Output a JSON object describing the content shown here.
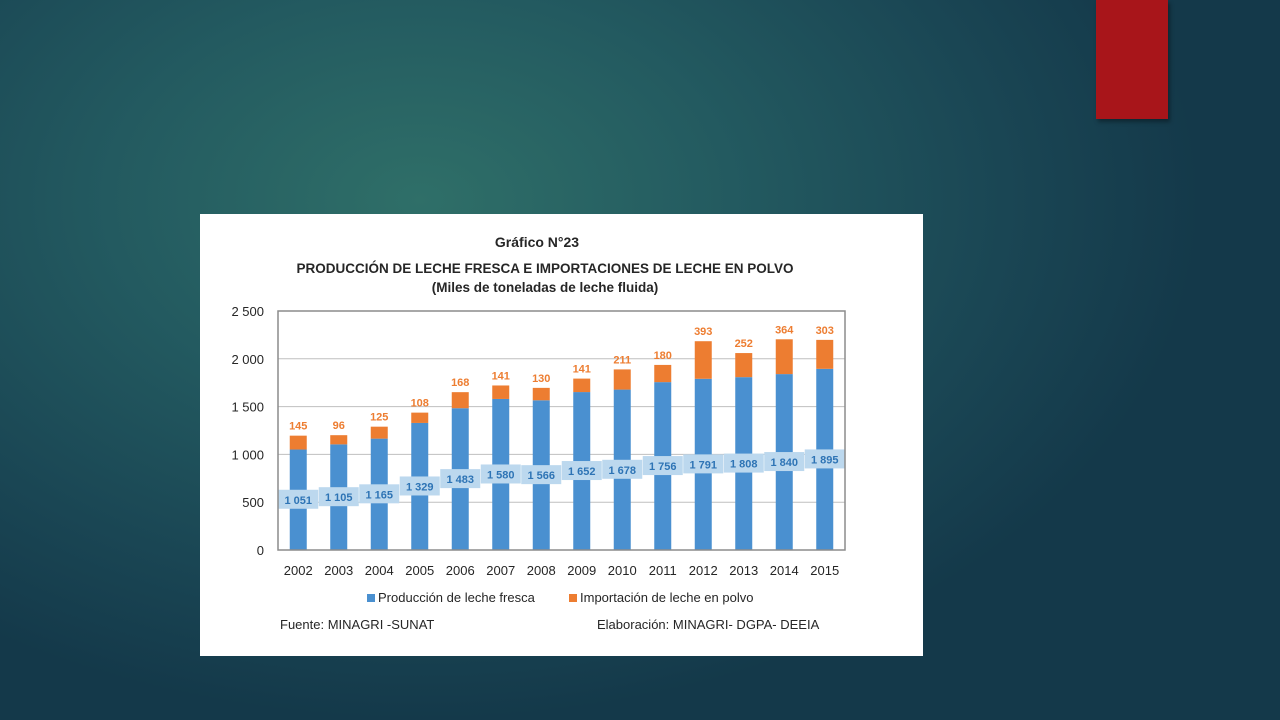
{
  "slide": {
    "accent_color": "#a8151a",
    "background_color": "#1f5158"
  },
  "chart_card": {
    "figure_label": "Gráfico N°23",
    "footer_left": "Fuente: MINAGRI -SUNAT",
    "footer_right": "Elaboración: MINAGRI- DGPA- DEEIA"
  },
  "chart_data": {
    "type": "bar",
    "stacked": true,
    "title": "PRODUCCIÓN DE LECHE FRESCA E IMPORTACIONES DE LECHE EN POLVO",
    "subtitle": "(Miles de toneladas de leche fluida)",
    "xlabel": "",
    "ylabel": "",
    "ylim": [
      0,
      2500
    ],
    "yticks": [
      0,
      500,
      1000,
      1500,
      2000,
      2500
    ],
    "ytick_labels": [
      "0",
      "500",
      "1 000",
      "1 500",
      "2 000",
      "2 500"
    ],
    "grid": true,
    "legend_position": "bottom",
    "categories": [
      "2002",
      "2003",
      "2004",
      "2005",
      "2006",
      "2007",
      "2008",
      "2009",
      "2010",
      "2011",
      "2012",
      "2013",
      "2014",
      "2015"
    ],
    "series": [
      {
        "name": "Producción de leche fresca",
        "color": "#4a90d0",
        "label_bg": "#bcd8ee",
        "label_color": "#2e74b5",
        "values": [
          1051,
          1105,
          1165,
          1329,
          1483,
          1580,
          1566,
          1652,
          1678,
          1756,
          1791,
          1808,
          1840,
          1895
        ],
        "labels": [
          "1 051",
          "1 105",
          "1 165",
          "1 329",
          "1 483",
          "1 580",
          "1 566",
          "1 652",
          "1 678",
          "1 756",
          "1 791",
          "1 808",
          "1 840",
          "1 895"
        ]
      },
      {
        "name": "Importación de leche en polvo",
        "color": "#ed7d31",
        "label_color": "#ed7d31",
        "values": [
          145,
          96,
          125,
          108,
          168,
          141,
          130,
          141,
          211,
          180,
          393,
          252,
          364,
          303
        ],
        "labels": [
          "145",
          "96",
          "125",
          "108",
          "168",
          "141",
          "130",
          "141",
          "211",
          "180",
          "393",
          "252",
          "364",
          "303"
        ]
      }
    ]
  }
}
